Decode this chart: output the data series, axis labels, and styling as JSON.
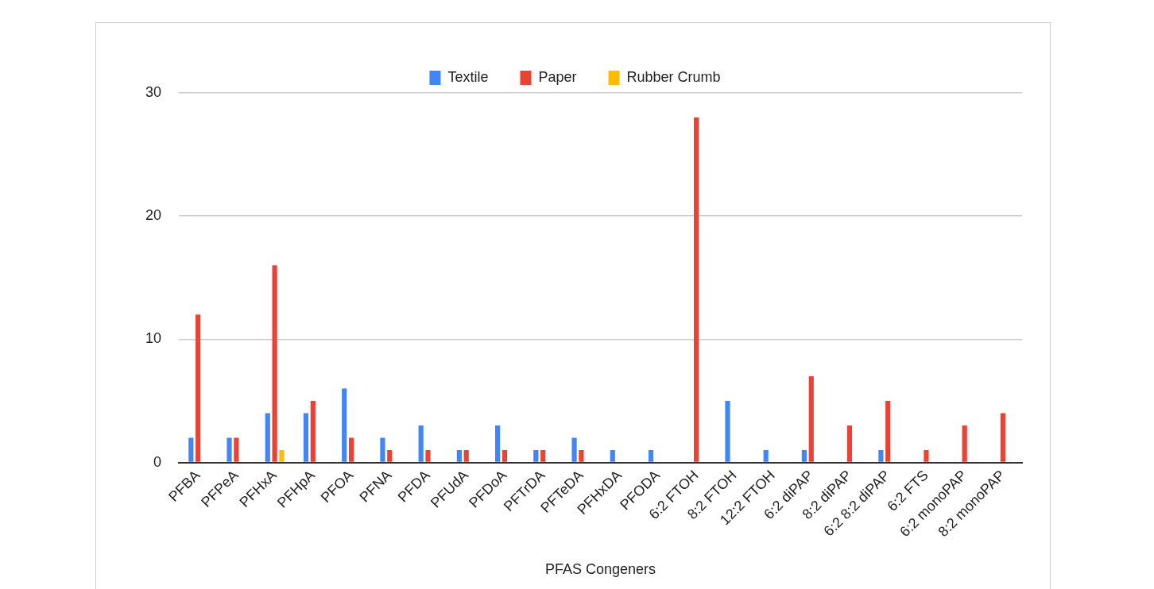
{
  "chart_data": {
    "type": "bar",
    "xlabel": "PFAS Congeners",
    "categories": [
      "PFBA",
      "PFPeA",
      "PFHxA",
      "PFHpA",
      "PFOA",
      "PFNA",
      "PFDA",
      "PFUdA",
      "PFDoA",
      "PFTrDA",
      "PFTeDA",
      "PFHxDA",
      "PFODA",
      "6:2 FTOH",
      "8:2 FTOH",
      "12:2 FTOH",
      "6:2 diPAP",
      "8:2 diPAP",
      "6:2 8:2 diPAP",
      "6:2 FTS",
      "6:2 monoPAP",
      "8:2 monoPAP"
    ],
    "series": [
      {
        "name": "Textile",
        "color": "#4285f4",
        "values": [
          2,
          2,
          4,
          4,
          6,
          2,
          3,
          1,
          3,
          1,
          2,
          1,
          1,
          null,
          5,
          1,
          1,
          null,
          1,
          null,
          null,
          null
        ]
      },
      {
        "name": "Paper",
        "color": "#ea4335",
        "values": [
          12,
          2,
          16,
          5,
          2,
          1,
          1,
          1,
          1,
          1,
          1,
          null,
          null,
          28,
          null,
          null,
          7,
          3,
          5,
          1,
          3,
          4
        ]
      },
      {
        "name": "Rubber Crumb",
        "color": "#fbbc04",
        "values": [
          null,
          null,
          1,
          null,
          null,
          null,
          null,
          null,
          null,
          null,
          null,
          null,
          null,
          null,
          null,
          null,
          null,
          null,
          null,
          null,
          null,
          null
        ]
      }
    ],
    "ylim": [
      0,
      30
    ],
    "yticks": [
      0,
      10,
      20,
      30
    ],
    "grid": "y",
    "legend": "top"
  }
}
